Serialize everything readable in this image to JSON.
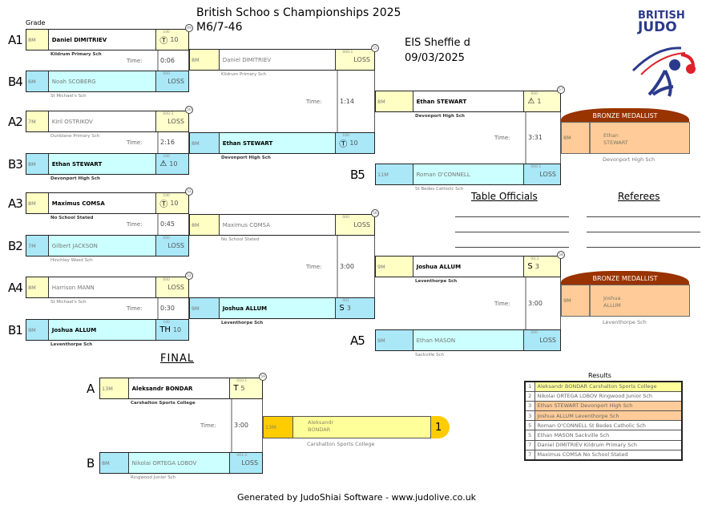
{
  "header": {
    "title": "British Schoo s Championships 2025",
    "category": "M6/7-46",
    "venue": "EIS Sheffie d",
    "date": "09/03/2025",
    "grade_label": "Grade",
    "logo": {
      "text_line1": "BRITISH",
      "text_line2": "JUDO",
      "colors": [
        "#2b3a8c",
        "#e0202a"
      ]
    }
  },
  "competitors": [
    {
      "label": "A1",
      "grade": "8M",
      "name": "Daniel DIMITRIEV",
      "club": "Kildrum Primary Sch",
      "score_top": "100",
      "score_icon": "ippon-circle-t",
      "icon_glyph": "Ⓣ",
      "score": "10",
      "winner": true
    },
    {
      "label": "B4",
      "grade": "6M",
      "name": "Noah SCOBERG",
      "club": "St Michael's Sch",
      "score_top": "000",
      "score": "LOSS",
      "winner": false
    },
    {
      "label": "A2",
      "grade": "7M",
      "name": "Kiril OSTRIKOV",
      "club": "Dunblane Primary Sch",
      "score_top": "000:3",
      "score": "LOSS",
      "winner": false
    },
    {
      "label": "B3",
      "grade": "8M",
      "name": "Ethan STEWART",
      "club": "Devonport High Sch",
      "score_top": "100",
      "score_icon": "warning-triangle",
      "icon_glyph": "⚠",
      "score": "10",
      "winner": true
    },
    {
      "label": "A3",
      "grade": "8M",
      "name": "Maximus COMSA",
      "club": "No School Stated",
      "score_top": "100",
      "score_icon": "ippon-circle-t",
      "icon_glyph": "Ⓣ",
      "score": "10",
      "winner": true
    },
    {
      "label": "B2",
      "grade": "7M",
      "name": "Gilbert JACKSON",
      "club": "Hinchley Wood Sch",
      "score_top": "000",
      "score": "LOSS",
      "winner": false
    },
    {
      "label": "A4",
      "grade": "8M",
      "name": "Harrison MANN",
      "club": "St Michael's Sch",
      "score_top": "000",
      "score": "LOSS",
      "winner": false
    },
    {
      "label": "B1",
      "grade": "9M",
      "name": "Joshua ALLUM",
      "club": "Leventhorpe Sch",
      "score_top": "100",
      "score_icon": "th-text",
      "icon_glyph": "TH",
      "score": "10",
      "winner": true
    },
    {
      "label": "",
      "grade": "8M",
      "name": "Daniel DIMITRIEV",
      "club": "Kildrum Primary Sch",
      "score_top": "000:1",
      "score": "LOSS",
      "winner": false
    },
    {
      "label": "",
      "grade": "8M",
      "name": "Ethan STEWART",
      "club": "Devonport High Sch",
      "score_top": "100",
      "score_icon": "ippon-circle-t",
      "icon_glyph": "Ⓣ",
      "score": "10",
      "winner": true
    },
    {
      "label": "",
      "grade": "8M",
      "name": "Maximus COMSA",
      "club": "No School Stated",
      "score_top": "000",
      "score": "LOSS",
      "winner": false
    },
    {
      "label": "",
      "grade": "9M",
      "name": "Joshua ALLUM",
      "club": "Leventhorpe Sch",
      "score_top": "001",
      "score_icon": "s-text",
      "icon_glyph": "S",
      "score": "3",
      "winner": true
    },
    {
      "label": "",
      "grade": "8M",
      "name": "Ethan STEWART",
      "club": "Devonport High Sch",
      "score_top": "000",
      "score_icon": "warning-triangle",
      "icon_glyph": "⚠",
      "score": "1",
      "winner": true
    },
    {
      "label": "B5",
      "grade": "11M",
      "name": "Roman O'CONNELL",
      "club": "St Bedes Catholic Sch",
      "score_top": "000:1",
      "score": "LOSS",
      "winner": false
    },
    {
      "label": "",
      "grade": "9M",
      "name": "Joshua ALLUM",
      "club": "Leventhorpe Sch",
      "score_top": "00:1",
      "score_icon": "s-text",
      "icon_glyph": "S",
      "score": "3",
      "winner": true
    },
    {
      "label": "A5",
      "grade": "9M",
      "name": "Ethan MASON",
      "club": "Sackville Sch",
      "score_top": "000",
      "score": "LOSS",
      "winner": false
    },
    {
      "label": "A",
      "grade": "13M",
      "name": "Aleksandr BONDAR",
      "club": "Carshalton Sports College",
      "score_top": "010:1",
      "score_icon": "t-text",
      "icon_glyph": "T",
      "score": "5",
      "winner": true
    },
    {
      "label": "B",
      "grade": "8M",
      "name": "Nikolai ORTEGA LOBOV",
      "club": "Ringwood Junior Sch",
      "score_top": "001:2",
      "score": "LOSS",
      "winner": false
    }
  ],
  "matches": [
    {
      "number": "49",
      "time": "0:06"
    },
    {
      "number": "50",
      "time": "2:16"
    },
    {
      "number": "51",
      "time": "0:45"
    },
    {
      "number": "52",
      "time": "0:30"
    },
    {
      "number": "55",
      "time": "1:14"
    },
    {
      "number": "56",
      "time": "3:00"
    },
    {
      "number": "57",
      "time": "3:31"
    },
    {
      "number": "58",
      "time": "3:00"
    },
    {
      "number": "59",
      "time": "3:00"
    }
  ],
  "time_label": "Time:",
  "bronze": [
    {
      "title": "BRONZE MEDALLIST",
      "grade": "8M",
      "first": "Ethan",
      "last": "STEWART",
      "club": "Devonport High Sch"
    },
    {
      "title": "BRONZE MEDALLIST",
      "grade": "9M",
      "first": "Joshua",
      "last": "ALLUM",
      "club": "Leventhorpe Sch"
    }
  ],
  "final": {
    "title": "FINAL",
    "winner": {
      "grade": "13M",
      "first": "Aleksandr",
      "last": "BONDAR",
      "club": "Carshalton Sports College",
      "place": "1"
    }
  },
  "officials": {
    "table_title": "Table Officials",
    "referees_title": "Referees"
  },
  "results": {
    "title": "Results",
    "rows": [
      {
        "place": "1",
        "text": "Aleksandr BONDAR Carshalton Sports College",
        "color": "#ffff99"
      },
      {
        "place": "2",
        "text": "Nikolai ORTEGA LOBOV Ringwood Junior Sch",
        "color": "#ffffff"
      },
      {
        "place": "3",
        "text": "Ethan STEWART Devonport High Sch",
        "color": "#ffcc99"
      },
      {
        "place": "3",
        "text": "Joshua ALLUM Leventhorpe Sch",
        "color": "#ffcc99"
      },
      {
        "place": "5",
        "text": "Roman O'CONNELL St Bedes Catholic Sch",
        "color": "#ffffff"
      },
      {
        "place": "5",
        "text": "Ethan MASON Sackville Sch",
        "color": "#ffffff"
      },
      {
        "place": "7",
        "text": "Daniel DIMITRIEV Kildrum Primary Sch",
        "color": "#ffffff"
      },
      {
        "place": "7",
        "text": "Maximus COMSA No School Stated",
        "color": "#ffffff"
      }
    ]
  },
  "footer": "Generated by JudoShiai Software - www.judolive.co.uk"
}
